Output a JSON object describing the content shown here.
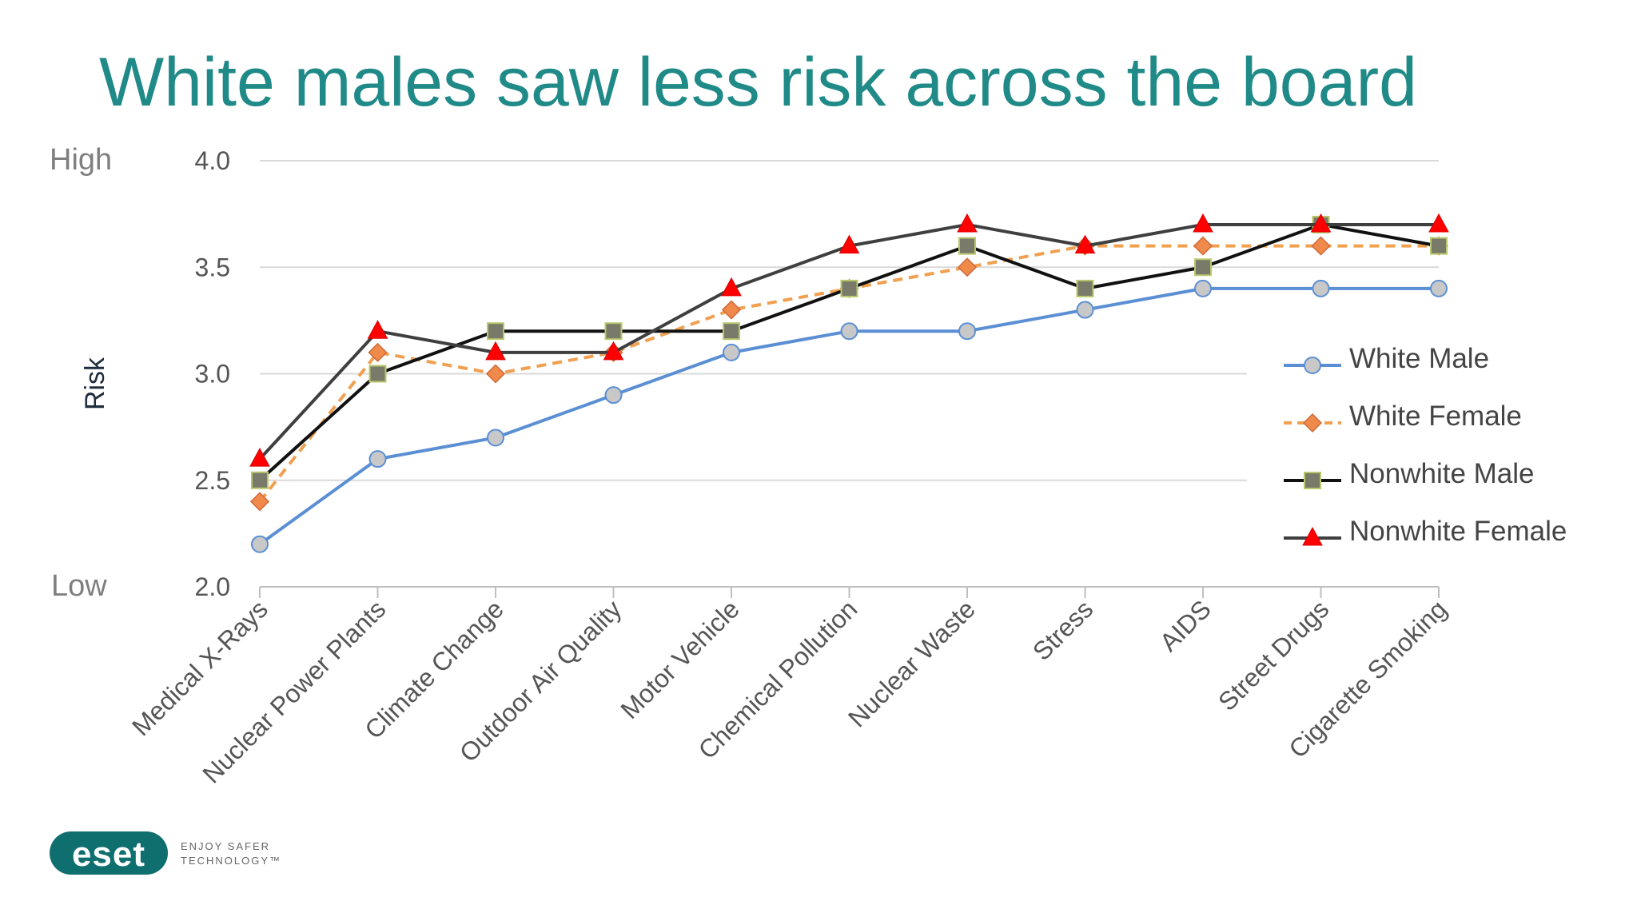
{
  "title": "White males saw less risk across the board",
  "chart_data": {
    "type": "line",
    "title": "White males saw less risk across the board",
    "ylabel": "Risk",
    "ylim": [
      2.0,
      4.0
    ],
    "yticks": [
      "2.0",
      "2.5",
      "3.0",
      "3.5",
      "4.0"
    ],
    "y_side_labels": {
      "high": "High",
      "low": "Low"
    },
    "legend_position": "right",
    "grid": true,
    "categories": [
      "Medical X-Rays",
      "Nuclear Power Plants",
      "Climate Change",
      "Outdoor Air Quality",
      "Motor Vehicle",
      "Chemical Pollution",
      "Nuclear Waste",
      "Stress",
      "AIDS",
      "Street Drugs",
      "Cigarette Smoking"
    ],
    "series": [
      {
        "name": "White Male",
        "values": [
          2.2,
          2.6,
          2.7,
          2.9,
          3.1,
          3.2,
          3.2,
          3.3,
          3.4,
          3.4,
          3.4
        ],
        "line_color": "#5b8fd4",
        "marker": "circle",
        "marker_fill": "#c8c8c8",
        "dashed": false
      },
      {
        "name": "White Female",
        "values": [
          2.4,
          3.1,
          3.0,
          3.1,
          3.3,
          3.4,
          3.5,
          3.6,
          3.6,
          3.6,
          3.6
        ],
        "line_color": "#f0a050",
        "marker": "diamond",
        "marker_fill": "#f08a4a",
        "dashed": true
      },
      {
        "name": "Nonwhite Male",
        "values": [
          2.5,
          3.0,
          3.2,
          3.2,
          3.2,
          3.4,
          3.6,
          3.4,
          3.5,
          3.7,
          3.6
        ],
        "line_color": "#111111",
        "marker": "square",
        "marker_fill": "#7a7a6a",
        "dashed": false
      },
      {
        "name": "Nonwhite Female",
        "values": [
          2.6,
          3.2,
          3.1,
          3.1,
          3.4,
          3.6,
          3.7,
          3.6,
          3.7,
          3.7,
          3.7
        ],
        "line_color": "#3f3f3f",
        "marker": "triangle",
        "marker_fill": "#ff0000",
        "dashed": false
      }
    ]
  },
  "logo": {
    "brand": "eset",
    "tagline_1": "ENJOY SAFER",
    "tagline_2": "TECHNOLOGY™",
    "color": "#0f6e6e"
  }
}
